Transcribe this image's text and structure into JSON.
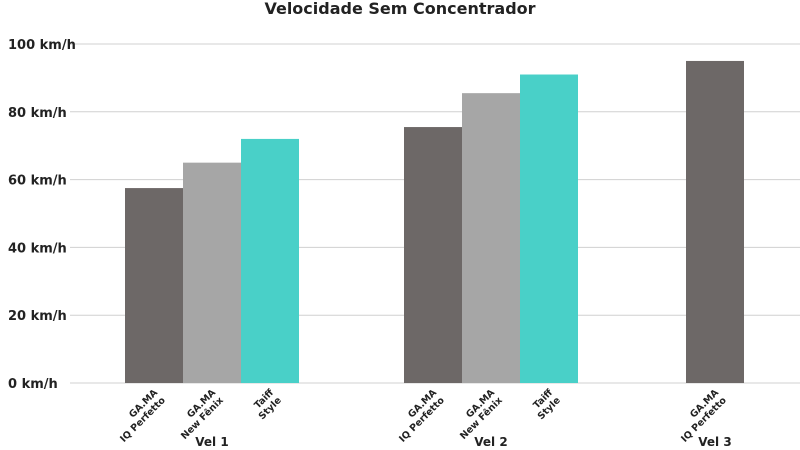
{
  "chart_data": {
    "type": "bar",
    "title": "Velocidade Sem Concentrador",
    "xlabel": "",
    "ylabel": "",
    "unit": "km/h",
    "ylim": [
      0,
      100
    ],
    "yticks": [
      0,
      20,
      40,
      60,
      80,
      100
    ],
    "ytick_labels": [
      "0 km/h",
      "20 km/h",
      "40 km/h",
      "60 km/h",
      "80 km/h",
      "100 km/h"
    ],
    "grid": true,
    "legend": "none",
    "groups": [
      {
        "name": "Vel 1",
        "bars": [
          {
            "label": [
              "GA.MA",
              "IQ Perfetto"
            ],
            "value": 57.5,
            "color": "#6d6867"
          },
          {
            "label": [
              "GA.MA",
              "New Fênix"
            ],
            "value": 65,
            "color": "#a6a6a6"
          },
          {
            "label": [
              "Taiff",
              "Style"
            ],
            "value": 72,
            "color": "#49d0c8"
          }
        ]
      },
      {
        "name": "Vel 2",
        "bars": [
          {
            "label": [
              "GA.MA",
              "IQ Perfetto"
            ],
            "value": 75.5,
            "color": "#6d6867"
          },
          {
            "label": [
              "GA.MA",
              "New Fênix"
            ],
            "value": 85.5,
            "color": "#a6a6a6"
          },
          {
            "label": [
              "Taiff",
              "Style"
            ],
            "value": 91,
            "color": "#49d0c8"
          }
        ]
      },
      {
        "name": "Vel 3",
        "bars": [
          {
            "label": [
              "GA.MA",
              "IQ Perfetto"
            ],
            "value": 95,
            "color": "#6d6867"
          }
        ]
      }
    ]
  }
}
